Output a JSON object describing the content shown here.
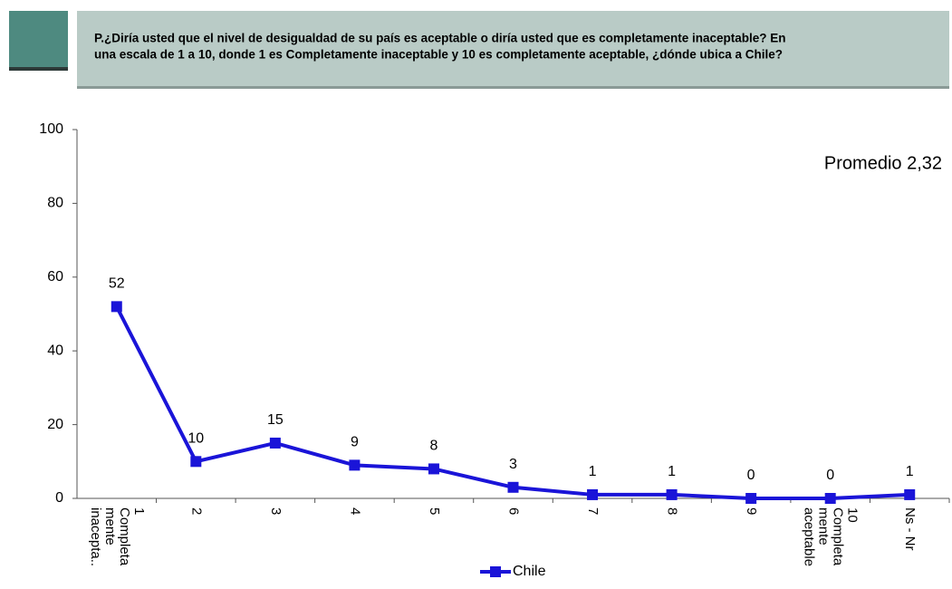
{
  "header": {
    "question_lines": [
      "P.¿Diría usted que el nivel de desigualdad de su país es aceptable o diría usted que es completamente inaceptable? En",
      "una escala de 1 a 10, donde 1 es Completamente inaceptable y 10 es completamente aceptable, ¿dónde ubica a Chile?"
    ]
  },
  "chart_data": {
    "type": "line",
    "annotation": "Promedio 2,32",
    "categories": [
      "1\nCompleta\nmente\ninacepta..",
      "2",
      "3",
      "4",
      "5",
      "6",
      "7",
      "8",
      "9",
      "10\nCompleta\nmente\naceptable",
      "Ns - Nr"
    ],
    "series": [
      {
        "name": "Chile",
        "color": "#1a14d8",
        "values": [
          52,
          10,
          15,
          9,
          8,
          3,
          1,
          1,
          0,
          0,
          1
        ]
      }
    ],
    "ylim": [
      0,
      100
    ],
    "yticks": [
      0,
      20,
      40,
      60,
      80,
      100
    ],
    "legend": "bottom"
  }
}
